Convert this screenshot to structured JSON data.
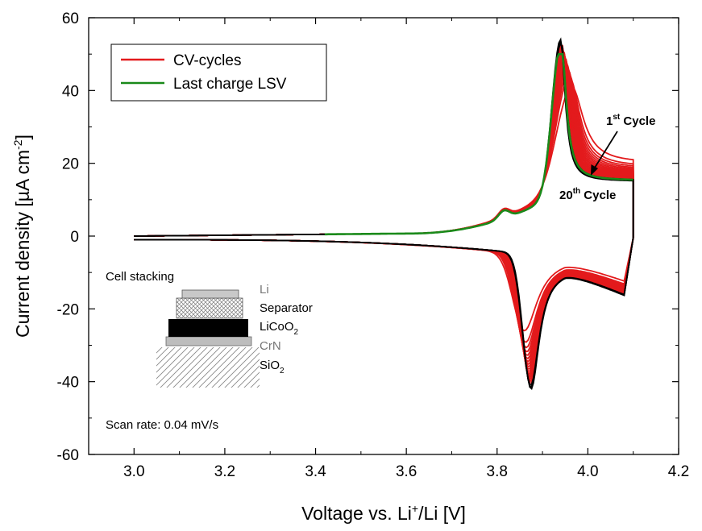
{
  "chart_data": {
    "type": "line",
    "xlabel_main": "Voltage vs. Li",
    "xlabel_sup": "+",
    "xlabel_tail": "/Li [V]",
    "ylabel_main": "Current density [µA cm",
    "ylabel_sup": "-2",
    "ylabel_tail": "]",
    "xlim": [
      2.9,
      4.2
    ],
    "ylim": [
      -60,
      60
    ],
    "x_ticks": [
      3.0,
      3.2,
      3.4,
      3.6,
      3.8,
      4.0,
      4.2
    ],
    "y_ticks": [
      -60,
      -40,
      -20,
      0,
      20,
      40,
      60
    ],
    "grid": false,
    "legend_position": "top-left",
    "colors": {
      "cv": "#e31a1c",
      "lsv": "#1a8a1a",
      "last": "#000000"
    },
    "legend": [
      {
        "label": "CV-cycles",
        "color": "#e31a1c"
      },
      {
        "label": "Last charge LSV",
        "color": "#1a8a1a"
      }
    ],
    "series": [
      {
        "name": "CV-cycles",
        "count": 20,
        "first_peak": {
          "anodic_x": 3.965,
          "anodic_y": 41,
          "cathodic_x": 3.86,
          "cathodic_y": -26
        },
        "last_peak": {
          "anodic_x": 3.94,
          "anodic_y": 54,
          "cathodic_x": 3.875,
          "cathodic_y": -42
        }
      },
      {
        "name": "Last charge LSV",
        "peak_x": 3.94,
        "peak_y": 50
      }
    ],
    "annotations": {
      "cycle1_main": "1",
      "cycle1_sup": "st",
      "cycle1_tail": " Cycle",
      "cycle20_main": "20",
      "cycle20_sup": "th",
      "cycle20_tail": " Cycle",
      "scan_rate": "Scan rate: 0.04 mV/s"
    },
    "inset": {
      "title": "Cell stacking",
      "layers": [
        "Li",
        "Separator",
        "LiCoO",
        "CrN",
        "SiO"
      ],
      "layer_subscripts": [
        "",
        "",
        "2",
        "",
        "2"
      ]
    }
  }
}
